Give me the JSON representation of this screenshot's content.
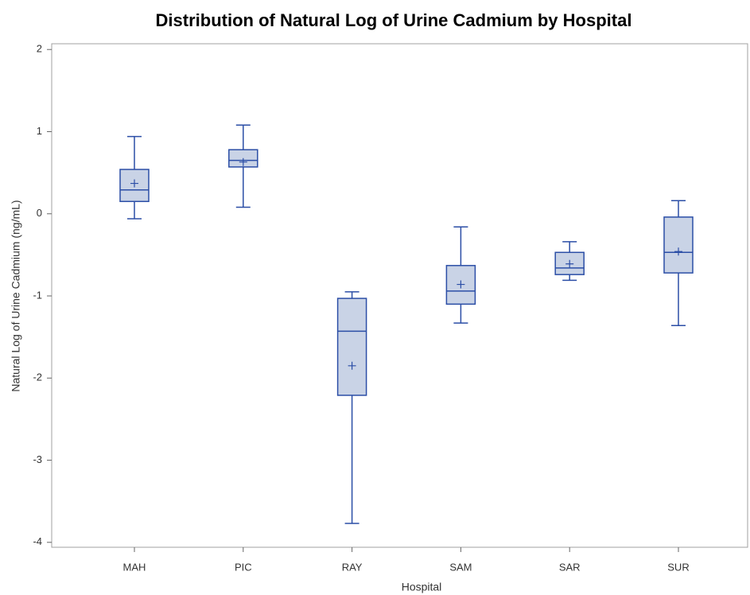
{
  "chart_data": {
    "type": "box",
    "title": "Distribution of Natural Log of Urine Cadmium by Hospital",
    "x_label": "Hospital",
    "y_label": "Natural Log of Urine Cadmium (ng/mL)",
    "categories": [
      "MAH",
      "PIC",
      "RAY",
      "SAM",
      "SAR",
      "SUR"
    ],
    "min": [
      -0.06,
      0.08,
      -3.77,
      -1.33,
      -0.81,
      -1.36
    ],
    "q1": [
      0.15,
      0.57,
      -2.21,
      -1.1,
      -0.74,
      -0.72
    ],
    "median": [
      0.29,
      0.65,
      -1.43,
      -0.94,
      -0.66,
      -0.47
    ],
    "q3": [
      0.54,
      0.78,
      -1.03,
      -0.63,
      -0.47,
      -0.04
    ],
    "max": [
      0.94,
      1.08,
      -0.95,
      -0.16,
      -0.34,
      0.16
    ],
    "mean": [
      0.37,
      0.63,
      -1.85,
      -0.86,
      -0.61,
      -0.46
    ],
    "color": "#2b4ea6",
    "fill": "#c9d3e6",
    "ylim": [
      -4.06,
      2.07
    ],
    "yticks": [
      -4,
      -3,
      -2,
      -1,
      0,
      1,
      2
    ]
  }
}
